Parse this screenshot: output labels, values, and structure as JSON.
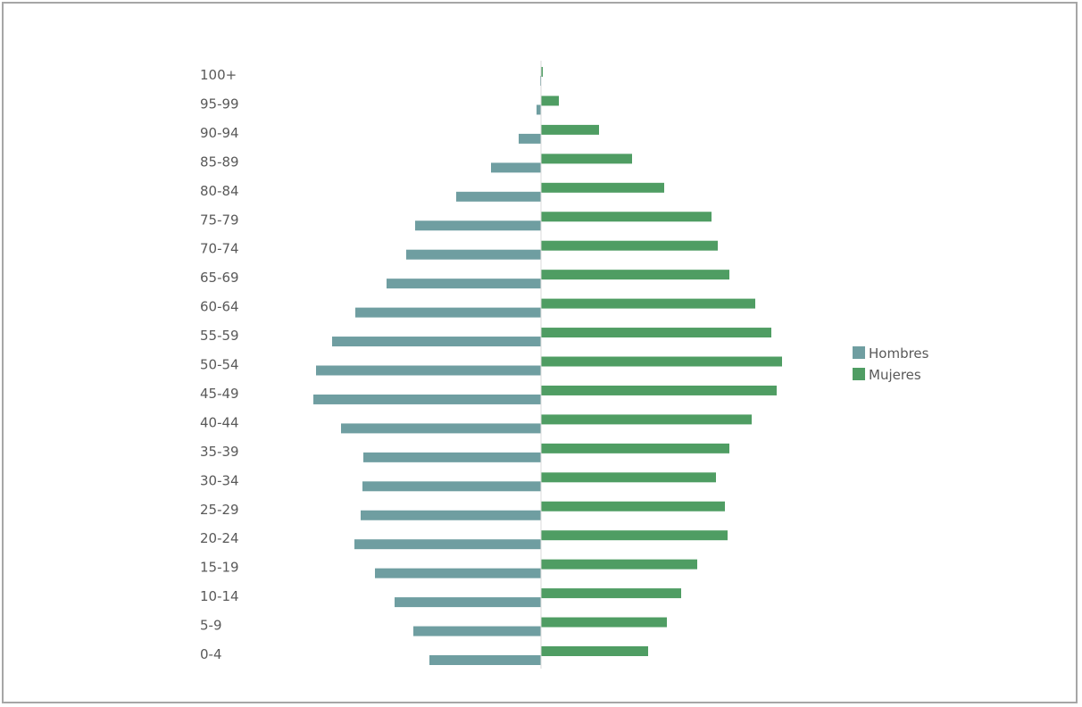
{
  "chart_data": {
    "type": "bar",
    "orientation": "horizontal",
    "subtype": "population-pyramid",
    "categories": [
      "100+",
      "95-99",
      "90-94",
      "85-89",
      "80-84",
      "75-79",
      "70-74",
      "65-69",
      "60-64",
      "55-59",
      "50-54",
      "45-49",
      "40-44",
      "35-39",
      "30-34",
      "25-29",
      "20-24",
      "15-19",
      "10-14",
      "5-9",
      "0-4"
    ],
    "series": [
      {
        "name": "Hombres",
        "color": "#6f9ea1",
        "direction": "left",
        "values": [
          1,
          5,
          25,
          56,
          95,
          141,
          151,
          173,
          208,
          234,
          252,
          255,
          224,
          199,
          200,
          202,
          209,
          186,
          164,
          143,
          125
        ]
      },
      {
        "name": "Mujeres",
        "color": "#4f9d63",
        "direction": "right",
        "values": [
          2,
          20,
          65,
          102,
          138,
          191,
          198,
          211,
          240,
          258,
          270,
          264,
          236,
          211,
          196,
          206,
          209,
          175,
          157,
          141,
          120
        ]
      }
    ],
    "legend": {
      "position": "right"
    },
    "grid": false,
    "title": "",
    "xlabel": "",
    "ylabel": ""
  }
}
